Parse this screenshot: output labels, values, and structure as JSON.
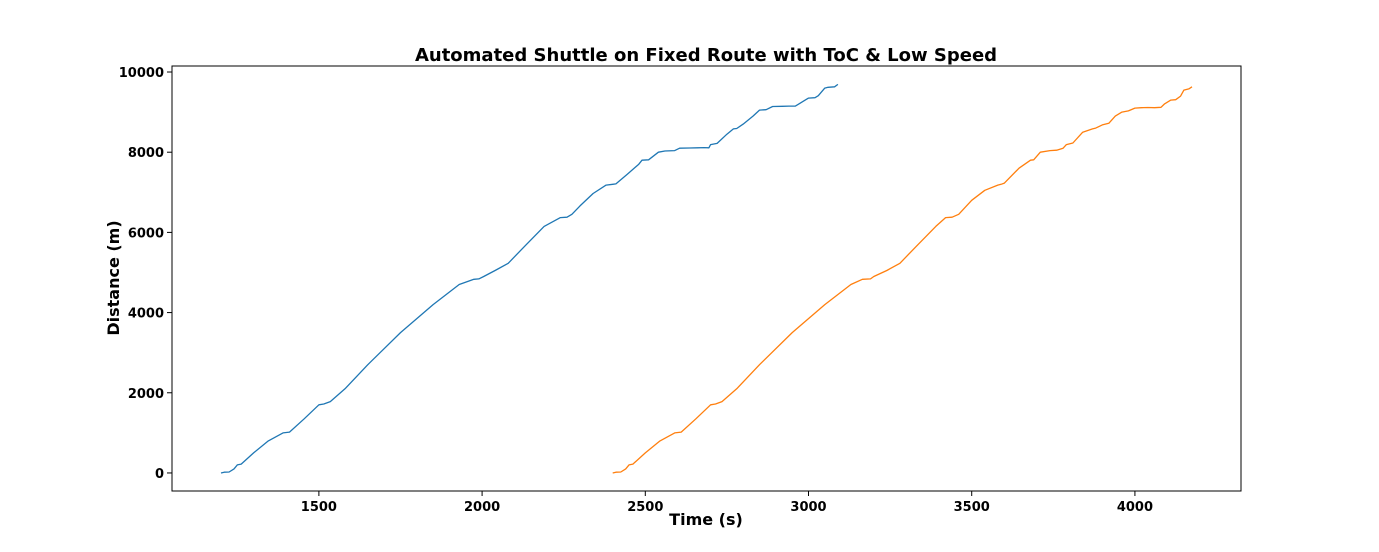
{
  "chart_data": {
    "type": "line",
    "title": "Automated Shuttle on Fixed Route with ToC & Low Speed",
    "xlabel": "Time (s)",
    "ylabel": "Distance (m)",
    "xlim": [
      1050,
      4325
    ],
    "ylim": [
      -450,
      10150
    ],
    "xticks": [
      1500,
      2000,
      2500,
      3000,
      3500,
      4000
    ],
    "xtick_labels": [
      "1500",
      "2000",
      "2500",
      "3000",
      "3500",
      "4000"
    ],
    "yticks": [
      0,
      2000,
      4000,
      6000,
      8000,
      10000
    ],
    "ytick_labels": [
      "0",
      "2000",
      "4000",
      "6000",
      "8000",
      "10000"
    ],
    "grid": false,
    "legend": "none",
    "series": [
      {
        "color": "#1f77b4",
        "x": [
          1200,
          1210,
          1225,
          1240,
          1250,
          1262,
          1300,
          1345,
          1390,
          1410,
          1455,
          1500,
          1515,
          1535,
          1580,
          1650,
          1750,
          1850,
          1930,
          1975,
          1990,
          2005,
          2040,
          2080,
          2130,
          2190,
          2240,
          2260,
          2275,
          2300,
          2340,
          2380,
          2400,
          2410,
          2445,
          2480,
          2490,
          2510,
          2540,
          2560,
          2590,
          2605,
          2635,
          2660,
          2680,
          2695,
          2700,
          2720,
          2750,
          2770,
          2780,
          2800,
          2830,
          2850,
          2870,
          2890,
          2920,
          2940,
          2960,
          2970,
          2990,
          3000,
          3020,
          3030,
          3050,
          3060,
          3080,
          3090
        ],
        "y": [
          0,
          20,
          25,
          100,
          200,
          220,
          500,
          800,
          1000,
          1020,
          1350,
          1700,
          1720,
          1780,
          2100,
          2700,
          3500,
          4200,
          4700,
          4830,
          4840,
          4900,
          5050,
          5230,
          5650,
          6150,
          6370,
          6380,
          6450,
          6660,
          6970,
          7180,
          7200,
          7210,
          7450,
          7700,
          7800,
          7810,
          8000,
          8030,
          8040,
          8100,
          8105,
          8110,
          8115,
          8110,
          8190,
          8220,
          8450,
          8580,
          8590,
          8700,
          8900,
          9050,
          9060,
          9140,
          9145,
          9150,
          9150,
          9200,
          9300,
          9350,
          9360,
          9410,
          9600,
          9620,
          9630,
          9690
        ]
      },
      {
        "color": "#ff7f0e",
        "x": [
          2400,
          2410,
          2425,
          2440,
          2450,
          2462,
          2500,
          2545,
          2590,
          2610,
          2655,
          2700,
          2715,
          2735,
          2780,
          2850,
          2950,
          3050,
          3130,
          3165,
          3190,
          3200,
          3240,
          3280,
          3330,
          3390,
          3420,
          3440,
          3460,
          3500,
          3540,
          3580,
          3590,
          3600,
          3645,
          3680,
          3690,
          3710,
          3740,
          3760,
          3780,
          3790,
          3810,
          3840,
          3870,
          3880,
          3900,
          3920,
          3940,
          3960,
          3980,
          4000,
          4020,
          4040,
          4060,
          4080,
          4090,
          4110,
          4125,
          4140,
          4150,
          4165,
          4175
        ],
        "y": [
          0,
          20,
          25,
          100,
          200,
          220,
          500,
          800,
          1000,
          1020,
          1350,
          1700,
          1720,
          1780,
          2100,
          2700,
          3500,
          4200,
          4700,
          4830,
          4840,
          4900,
          5050,
          5230,
          5650,
          6150,
          6370,
          6380,
          6450,
          6800,
          7050,
          7180,
          7200,
          7230,
          7600,
          7800,
          7810,
          8000,
          8040,
          8050,
          8100,
          8190,
          8230,
          8500,
          8580,
          8600,
          8680,
          8720,
          8900,
          9000,
          9030,
          9100,
          9110,
          9115,
          9110,
          9120,
          9200,
          9300,
          9310,
          9400,
          9550,
          9580,
          9630
        ]
      }
    ]
  }
}
